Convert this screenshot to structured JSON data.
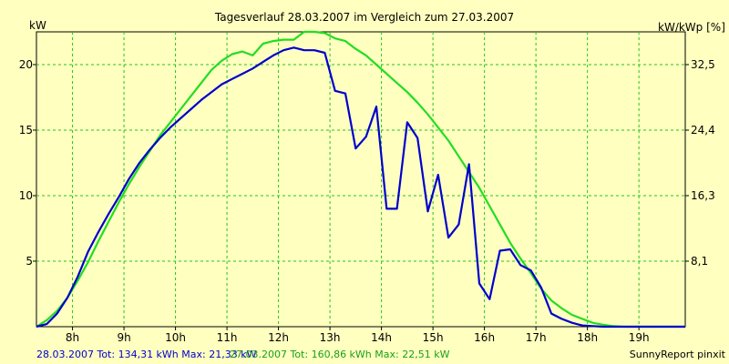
{
  "chart_data": {
    "type": "line",
    "title": "Tagesverlauf 28.03.2007 im Vergleich zum 27.03.2007",
    "ylabel_left": "kW",
    "ylabel_right": "kW/kWp [%]",
    "xlim": [
      7.3,
      19.9
    ],
    "ylim": [
      0,
      22.5
    ],
    "x_ticks": [
      8,
      9,
      10,
      11,
      12,
      13,
      14,
      15,
      16,
      17,
      18,
      19
    ],
    "x_tick_labels": [
      "8h",
      "9h",
      "10h",
      "11h",
      "12h",
      "13h",
      "14h",
      "15h",
      "16h",
      "17h",
      "18h",
      "19h"
    ],
    "y_ticks_left": [
      5,
      10,
      15,
      20
    ],
    "y_tick_labels_left": [
      "5",
      "10",
      "15",
      "20"
    ],
    "y_ticks_right": [
      5,
      10,
      15,
      20
    ],
    "y_tick_labels_right": [
      "8,1",
      "16,3",
      "24,4",
      "32,5"
    ],
    "grid": true,
    "series": [
      {
        "name": "28.03.2007",
        "color": "#0000cc",
        "x": [
          7.3,
          7.5,
          7.7,
          7.9,
          8.1,
          8.3,
          8.5,
          8.7,
          8.9,
          9.1,
          9.3,
          9.5,
          9.7,
          9.9,
          10.1,
          10.3,
          10.5,
          10.7,
          10.9,
          11.1,
          11.3,
          11.5,
          11.7,
          11.9,
          12.1,
          12.3,
          12.5,
          12.7,
          12.9,
          13.1,
          13.3,
          13.5,
          13.7,
          13.9,
          14.1,
          14.3,
          14.5,
          14.7,
          14.9,
          15.1,
          15.3,
          15.5,
          15.7,
          15.9,
          16.1,
          16.3,
          16.5,
          16.7,
          16.9,
          17.1,
          17.3,
          17.5,
          17.7,
          17.9,
          18.1,
          18.3,
          18.5,
          18.7,
          18.9,
          19.1,
          19.3,
          19.5,
          19.7,
          19.9
        ],
        "values": [
          0,
          0.2,
          1.0,
          2.2,
          3.8,
          5.7,
          7.2,
          8.6,
          9.9,
          11.3,
          12.5,
          13.5,
          14.4,
          15.2,
          15.9,
          16.6,
          17.3,
          17.9,
          18.5,
          18.9,
          19.3,
          19.7,
          20.2,
          20.7,
          21.1,
          21.3,
          21.1,
          21.1,
          20.9,
          18.0,
          17.8,
          13.6,
          14.5,
          16.8,
          9.0,
          9.0,
          15.6,
          14.4,
          8.8,
          11.6,
          6.8,
          7.8,
          12.4,
          3.3,
          2.1,
          5.8,
          5.9,
          4.7,
          4.3,
          3.0,
          1.0,
          0.6,
          0.3,
          0.1,
          0.05,
          0,
          0,
          0,
          0,
          0,
          0,
          0,
          0,
          0
        ]
      },
      {
        "name": "27.03.2007",
        "color": "#22dd22",
        "x": [
          7.3,
          7.5,
          7.7,
          7.9,
          8.1,
          8.3,
          8.5,
          8.7,
          8.9,
          9.1,
          9.3,
          9.5,
          9.7,
          9.9,
          10.1,
          10.3,
          10.5,
          10.7,
          10.9,
          11.1,
          11.3,
          11.5,
          11.7,
          11.9,
          12.1,
          12.3,
          12.5,
          12.7,
          12.9,
          13.1,
          13.3,
          13.5,
          13.7,
          13.9,
          14.1,
          14.3,
          14.5,
          14.7,
          14.9,
          15.1,
          15.3,
          15.5,
          15.7,
          15.9,
          16.1,
          16.3,
          16.5,
          16.7,
          16.9,
          17.1,
          17.3,
          17.5,
          17.7,
          17.9,
          18.1,
          18.3,
          18.5,
          18.7,
          18.9,
          19.1,
          19.3,
          19.5,
          19.7,
          19.9
        ],
        "values": [
          0,
          0.5,
          1.2,
          2.2,
          3.5,
          4.9,
          6.5,
          8.0,
          9.5,
          10.9,
          12.2,
          13.4,
          14.6,
          15.6,
          16.6,
          17.6,
          18.6,
          19.6,
          20.3,
          20.8,
          21.0,
          20.7,
          21.6,
          21.8,
          21.9,
          21.9,
          22.5,
          22.5,
          22.4,
          22.0,
          21.8,
          21.2,
          20.7,
          20.0,
          19.3,
          18.6,
          17.9,
          17.1,
          16.2,
          15.2,
          14.2,
          13.0,
          11.8,
          10.6,
          9.2,
          7.8,
          6.4,
          5.2,
          4.1,
          2.9,
          2.0,
          1.4,
          0.9,
          0.6,
          0.3,
          0.15,
          0.05,
          0,
          0,
          0,
          0,
          0,
          0,
          0
        ]
      }
    ]
  },
  "footer": {
    "summary_1": "28.03.2007 Tot: 134,31 kWh Max: 21,33 kW",
    "summary_2": "27.03.2007 Tot: 160,86 kWh Max: 22,51 kW",
    "brand": "SunnyReport pinxit"
  }
}
